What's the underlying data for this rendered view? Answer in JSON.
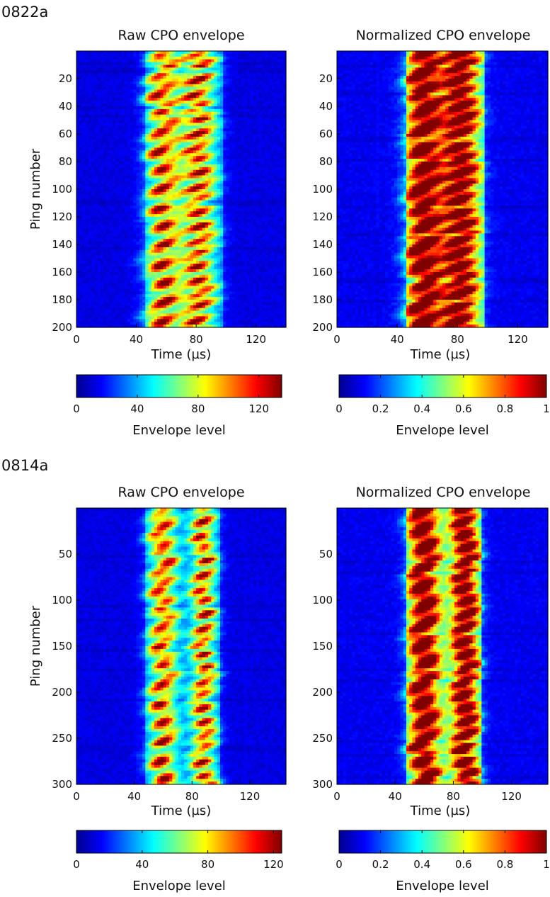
{
  "chart_data": [
    {
      "type": "heatmap",
      "group": "0822a",
      "title": "Raw CPO envelope",
      "xlabel": "Time (µs)",
      "ylabel": "Ping number",
      "xlim": [
        0,
        140
      ],
      "ylim": [
        200,
        0
      ],
      "xticks": [
        "0",
        "40",
        "80",
        "120"
      ],
      "yticks": [
        "20",
        "40",
        "60",
        "80",
        "100",
        "120",
        "140",
        "160",
        "180",
        "200"
      ],
      "colorbar": {
        "label": "Envelope level",
        "range": [
          0,
          135
        ],
        "ticks": [
          "0",
          "40",
          "80",
          "120"
        ]
      },
      "bands": [
        {
          "center": 58,
          "width": 18
        },
        {
          "center": 82,
          "width": 18
        }
      ],
      "signal_window": [
        45,
        98
      ],
      "peak_level": 135
    },
    {
      "type": "heatmap",
      "group": "0822a",
      "title": "Normalized CPO envelope",
      "xlabel": "Time (µs)",
      "ylabel": "",
      "xlim": [
        0,
        140
      ],
      "ylim": [
        200,
        0
      ],
      "xticks": [
        "0",
        "40",
        "80",
        "120"
      ],
      "yticks": [
        "20",
        "40",
        "60",
        "80",
        "100",
        "120",
        "140",
        "160",
        "180",
        "200"
      ],
      "colorbar": {
        "label": "Envelope level",
        "range": [
          0,
          1
        ],
        "ticks": [
          "0",
          "0.2",
          "0.4",
          "0.6",
          "0.8",
          "1"
        ]
      },
      "bands": [
        {
          "center": 58,
          "width": 18
        },
        {
          "center": 82,
          "width": 18
        }
      ],
      "signal_window": [
        45,
        98
      ],
      "peak_level": 1
    },
    {
      "type": "heatmap",
      "group": "0814a",
      "title": "Raw CPO envelope",
      "xlabel": "Time (µs)",
      "ylabel": "Ping number",
      "xlim": [
        0,
        145
      ],
      "ylim": [
        300,
        0
      ],
      "xticks": [
        "0",
        "40",
        "80",
        "120"
      ],
      "yticks": [
        "50",
        "100",
        "150",
        "200",
        "250",
        "300"
      ],
      "colorbar": {
        "label": "Envelope level",
        "range": [
          0,
          125
        ],
        "ticks": [
          "0",
          "40",
          "80",
          "120"
        ]
      },
      "bands": [
        {
          "center": 60,
          "width": 16
        },
        {
          "center": 88,
          "width": 14
        }
      ],
      "signal_window": [
        48,
        100
      ],
      "peak_level": 125
    },
    {
      "type": "heatmap",
      "group": "0814a",
      "title": "Normalized CPO envelope",
      "xlabel": "Time (µs)",
      "ylabel": "",
      "xlim": [
        0,
        145
      ],
      "ylim": [
        300,
        0
      ],
      "xticks": [
        "0",
        "40",
        "80",
        "120"
      ],
      "yticks": [
        "50",
        "100",
        "150",
        "200",
        "250",
        "300"
      ],
      "colorbar": {
        "label": "Envelope level",
        "range": [
          0,
          1
        ],
        "ticks": [
          "0",
          "0.2",
          "0.4",
          "0.6",
          "0.8",
          "1"
        ]
      },
      "bands": [
        {
          "center": 60,
          "width": 16
        },
        {
          "center": 88,
          "width": 14
        }
      ],
      "signal_window": [
        48,
        100
      ],
      "peak_level": 1
    }
  ],
  "groups": [
    "0822a",
    "0814a"
  ],
  "colormap": [
    "#00008f",
    "#0000ff",
    "#00ffff",
    "#ffff00",
    "#ff0000",
    "#800000"
  ]
}
